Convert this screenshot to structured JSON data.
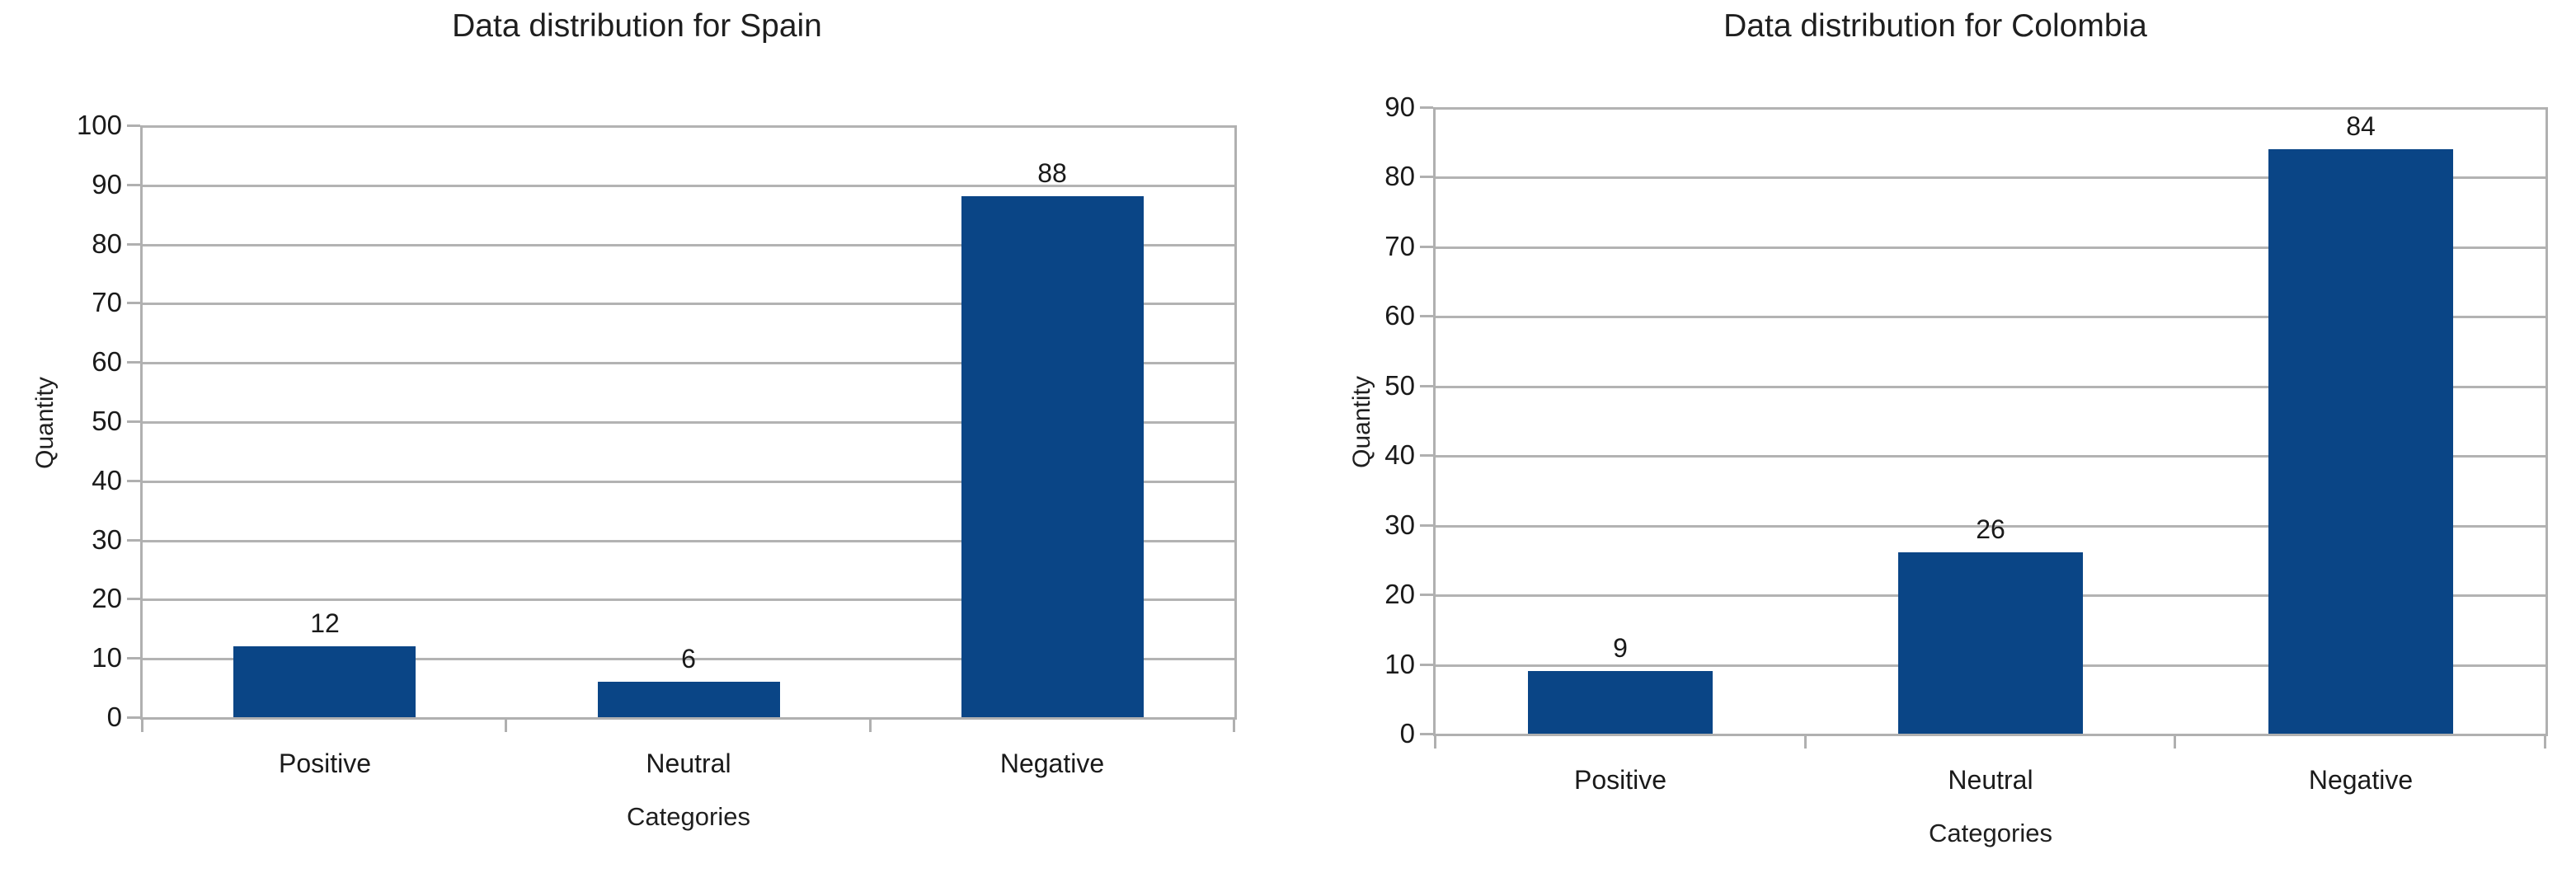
{
  "style": {
    "background": "#ffffff",
    "grid_color": "#b3b3b3",
    "axis_color": "#b0b0b0",
    "text_color": "#1a1a1a",
    "bar_color": "#0a4586"
  },
  "chart_data": [
    {
      "type": "bar",
      "title": "Data distribution for Spain",
      "xlabel": "Categories",
      "ylabel": "Quantity",
      "categories": [
        "Positive",
        "Neutral",
        "Negative"
      ],
      "values": [
        12,
        6,
        88
      ],
      "data_labels": [
        "12",
        "6",
        "88"
      ],
      "ylim": [
        0,
        100
      ],
      "yticks": [
        0,
        10,
        20,
        30,
        40,
        50,
        60,
        70,
        80,
        90,
        100
      ],
      "grid": true,
      "legend": "none",
      "bar_color": "#0a4586"
    },
    {
      "type": "bar",
      "title": "Data distribution for Colombia",
      "xlabel": "Categories",
      "ylabel": "Quantity",
      "categories": [
        "Positive",
        "Neutral",
        "Negative"
      ],
      "values": [
        9,
        26,
        84
      ],
      "data_labels": [
        "9",
        "26",
        "84"
      ],
      "ylim": [
        0,
        90
      ],
      "yticks": [
        0,
        10,
        20,
        30,
        40,
        50,
        60,
        70,
        80,
        90
      ],
      "grid": true,
      "legend": "none",
      "bar_color": "#0a4586"
    }
  ]
}
